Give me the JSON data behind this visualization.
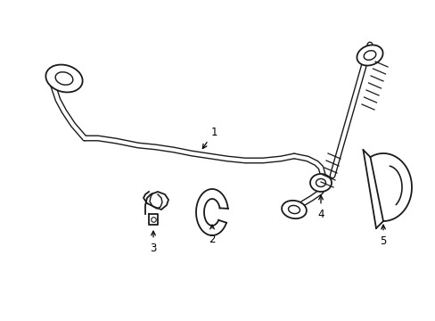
{
  "background_color": "#ffffff",
  "line_color": "#1a1a1a",
  "lw": 1.3,
  "figsize": [
    4.89,
    3.6
  ],
  "dpi": 100
}
